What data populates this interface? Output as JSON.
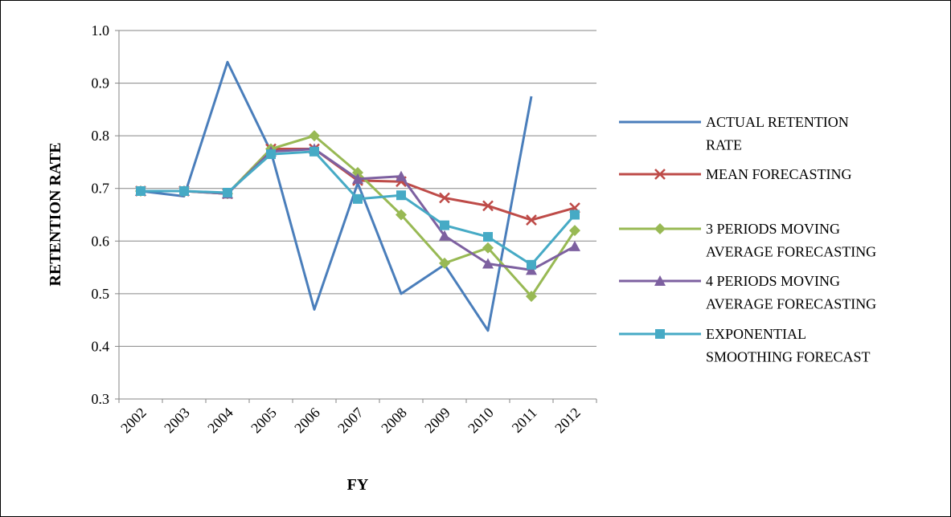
{
  "chart_data": {
    "type": "line",
    "x_label": "FY",
    "y_label": "RETENTION RATE",
    "categories": [
      "2002",
      "2003",
      "2004",
      "2005",
      "2006",
      "2007",
      "2008",
      "2009",
      "2010",
      "2011",
      "2012"
    ],
    "series": [
      {
        "name": "ACTUAL RETENTION RATE",
        "color": "#4a7ebb",
        "marker": "none",
        "values": [
          0.695,
          0.685,
          0.94,
          0.77,
          0.47,
          0.71,
          0.5,
          0.555,
          0.43,
          0.875,
          null
        ]
      },
      {
        "name": "MEAN FORECASTING",
        "color": "#be4b48",
        "marker": "x",
        "values": [
          0.695,
          0.695,
          0.69,
          0.775,
          0.775,
          0.715,
          0.713,
          0.682,
          0.667,
          0.64,
          0.663
        ]
      },
      {
        "name": "3 PERIODS MOVING AVERAGE FORECASTING",
        "color": "#98b954",
        "marker": "diamond",
        "values": [
          0.695,
          0.695,
          0.69,
          0.775,
          0.8,
          0.73,
          0.65,
          0.558,
          0.587,
          0.495,
          0.62
        ]
      },
      {
        "name": "4 PERIODS MOVING AVERAGE FORECASTING",
        "color": "#7d60a0",
        "marker": "triangle",
        "values": [
          0.695,
          0.695,
          0.69,
          0.77,
          0.775,
          0.718,
          0.723,
          0.61,
          0.557,
          0.545,
          0.59
        ]
      },
      {
        "name": "EXPONENTIAL SMOOTHING FORECAST",
        "color": "#46aac5",
        "marker": "square",
        "values": [
          0.695,
          0.695,
          0.692,
          0.765,
          0.77,
          0.68,
          0.687,
          0.63,
          0.608,
          0.555,
          0.65
        ]
      }
    ],
    "ylim": [
      0.3,
      1
    ],
    "yticks": [
      0.3,
      0.4,
      0.5,
      0.6,
      0.7,
      0.8,
      0.9,
      {
        "value": 1,
        "label": "1.0"
      }
    ],
    "grid": true,
    "legend": "right"
  }
}
